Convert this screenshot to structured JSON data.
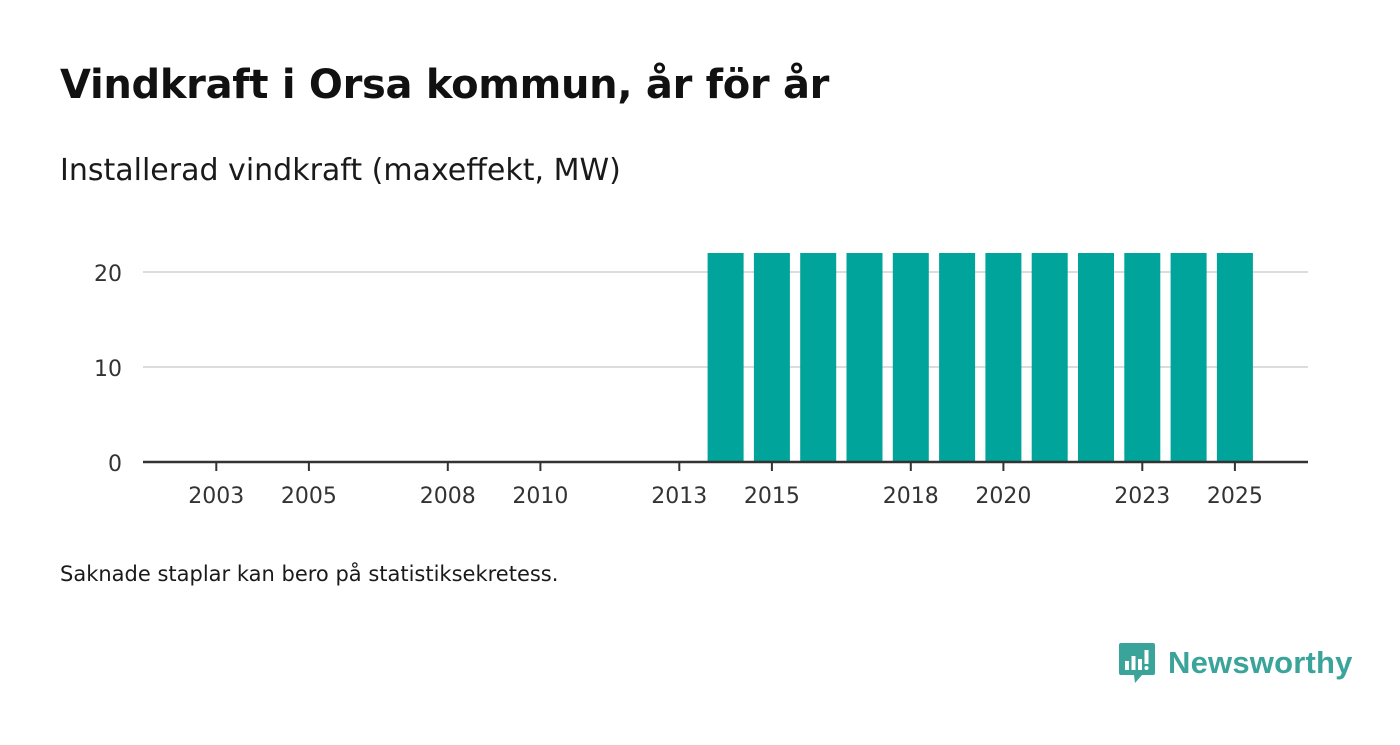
{
  "header": {
    "title": "Vindkraft i Orsa kommun, år för år",
    "subtitle": "Installerad vindkraft (maxeffekt, MW)"
  },
  "footer": {
    "note": "Saknade staplar kan bero på statistiksekretess.",
    "brand": "Newsworthy"
  },
  "colors": {
    "bar": "#00a49a",
    "grid": "#dcdcdc",
    "axis": "#333333",
    "brand": "#3aa39a"
  },
  "chart_data": {
    "type": "bar",
    "title": "Vindkraft i Orsa kommun, år för år",
    "ylabel": "Installerad vindkraft (maxeffekt, MW)",
    "xlabel": "",
    "categories": [
      "2003",
      "2004",
      "2005",
      "2006",
      "2007",
      "2008",
      "2009",
      "2010",
      "2011",
      "2012",
      "2013",
      "2014",
      "2015",
      "2016",
      "2017",
      "2018",
      "2019",
      "2020",
      "2021",
      "2022",
      "2023",
      "2024",
      "2025"
    ],
    "values": [
      0,
      0,
      0,
      0,
      0,
      0,
      0,
      0,
      0,
      0,
      0,
      22,
      22,
      22,
      22,
      22,
      22,
      22,
      22,
      22,
      22,
      22,
      22
    ],
    "xticks": [
      "2003",
      "2005",
      "2008",
      "2010",
      "2013",
      "2015",
      "2018",
      "2020",
      "2023",
      "2025"
    ],
    "yticks": [
      0,
      10,
      20
    ],
    "ylim": [
      0,
      23
    ],
    "grid": true
  }
}
